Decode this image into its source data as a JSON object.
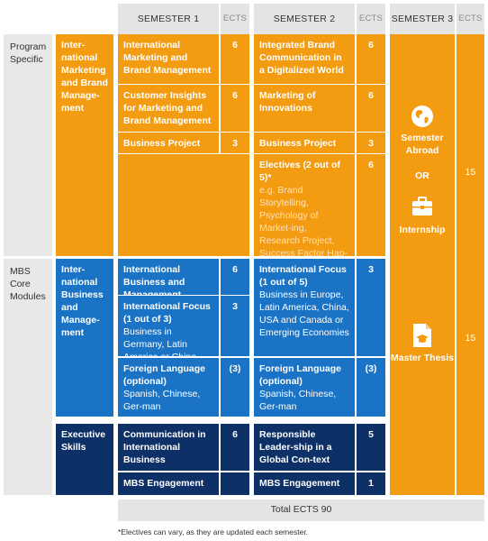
{
  "header": {
    "semester1": "SEMESTER 1",
    "ects1": "ECTS",
    "semester2": "SEMESTER 2",
    "ects2": "ECTS",
    "semester3": "SEMESTER 3",
    "ects3": "ECTS"
  },
  "rows": {
    "program_specific": "Program Specific",
    "mbs_core": "MBS Core Modules",
    "exec_label": ""
  },
  "program_specific": {
    "track": "Inter-national Marketing and Brand Manage-ment",
    "s1": [
      {
        "title": "International Marketing and Brand Management",
        "ects": "6"
      },
      {
        "title": "Customer Insights for Marketing and Brand Management",
        "ects": "6"
      },
      {
        "title": "Business Project",
        "ects": "3"
      }
    ],
    "s2": [
      {
        "title": "Integrated Brand Communication in a Digitalized World",
        "ects": "6"
      },
      {
        "title": "Marketing of Innovations",
        "ects": "6"
      },
      {
        "title": "Business Project",
        "ects": "3"
      }
    ],
    "electives": {
      "title": "Electives (2 out of 5)*",
      "detail": "e.g. Brand Storytelling, Psychology of Market-ing, Research Project, Success Factor Hap-piness, Technology Trends",
      "ects": "6"
    }
  },
  "core": {
    "track": "Inter-national Business and Manage-ment",
    "s1": [
      {
        "title": "International Business and Management",
        "ects": "6"
      },
      {
        "title": "International Focus (1 out of 3)",
        "detail": "Business in Germany, Latin America or China",
        "ects": "3"
      },
      {
        "title": "Foreign Language (optional)",
        "detail": "Spanish, Chinese, Ger-man",
        "ects": "(3)"
      }
    ],
    "s2": [
      {
        "title": "International Focus (1 out of  5)",
        "detail": "Business in Europe, Latin America, China, USA and Canada or Emerging Economies",
        "ects": "3"
      },
      {
        "title": "Foreign Language (optional)",
        "detail": "Spanish, Chinese, Ger-man",
        "ects": "(3)"
      }
    ]
  },
  "exec": {
    "track": "Executive Skills",
    "s1": [
      {
        "title": "Communication in International Business",
        "ects": "6"
      },
      {
        "title": "MBS Engagement",
        "ects": ""
      }
    ],
    "s2": [
      {
        "title": "Responsible Leader-ship in a Global Con-text",
        "ects": "5"
      },
      {
        "title": "MBS Engagement",
        "ects": "1"
      }
    ]
  },
  "semester3": {
    "abroad": "Semester Abroad",
    "or": "OR",
    "internship": "Internship",
    "ects_top": "15",
    "thesis": "Master Thesis",
    "ects_bottom": "15",
    "icons": [
      "globe-icon",
      "briefcase-icon",
      "document-graduation-icon"
    ]
  },
  "colors": {
    "orange": "#f39c12",
    "blue": "#1a73c4",
    "navy": "#0d3066",
    "header_gray": "#e4e4e4"
  },
  "footer": {
    "total": "Total ECTS 90",
    "note": "*Electives can vary, as they are updated each semester."
  }
}
